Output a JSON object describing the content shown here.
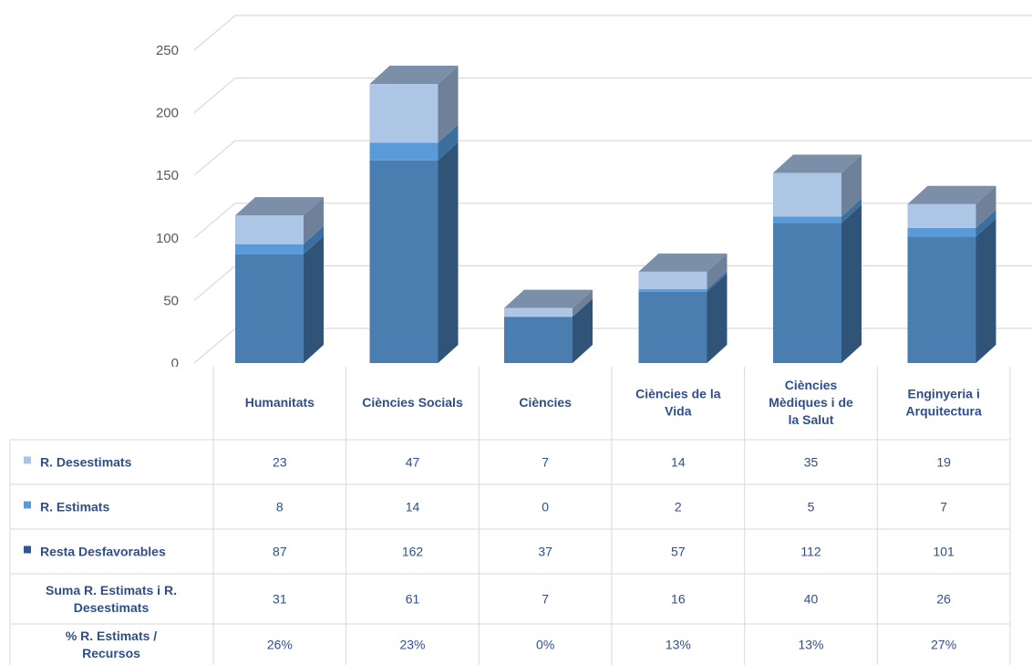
{
  "chart_data": {
    "type": "bar",
    "stacked": true,
    "style": "3d-column",
    "categories": [
      [
        "Humanitats"
      ],
      [
        "Ciències Socials"
      ],
      [
        "Ciències"
      ],
      [
        "Ciències de la",
        "Vida"
      ],
      [
        "Ciències",
        "Mèdiques i de",
        "la Salut"
      ],
      [
        "Enginyeria i",
        "Arquitectura"
      ]
    ],
    "ylim": [
      0,
      250
    ],
    "yticks": [
      0,
      50,
      100,
      150,
      200,
      250
    ],
    "grid": true,
    "series": [
      {
        "name": "Resta Desfavorables",
        "values": [
          87,
          162,
          37,
          57,
          112,
          101
        ],
        "color": "#4472C4",
        "front": "#4A7DB0",
        "top": "#6B8BB0",
        "side": "#2F5477",
        "legend": "#2E5597"
      },
      {
        "name": "R. Estimats",
        "values": [
          8,
          14,
          0,
          2,
          5,
          7
        ],
        "color": "#5B9BD5",
        "front": "#5A9AD8",
        "top": "#7FAFDC",
        "side": "#3B6FA0",
        "legend": "#5B9BD5"
      },
      {
        "name": "R. Desestimats",
        "values": [
          23,
          47,
          7,
          14,
          35,
          19
        ],
        "color": "#A9C4E6",
        "front": "#ADC6E6",
        "top": "#7C8FA8",
        "side": "#6F8199",
        "legend": "#A9C4E6"
      }
    ],
    "table": {
      "rows": [
        {
          "label": [
            "R. Desestimats"
          ],
          "legend": "#A9C4E6",
          "values": [
            "23",
            "47",
            "7",
            "14",
            "35",
            "19"
          ]
        },
        {
          "label": [
            "R. Estimats"
          ],
          "legend": "#5B9BD5",
          "values": [
            "8",
            "14",
            "0",
            "2",
            "5",
            "7"
          ]
        },
        {
          "label": [
            "Resta Desfavorables"
          ],
          "legend": "#2E5597",
          "values": [
            "87",
            "162",
            "37",
            "57",
            "112",
            "101"
          ]
        },
        {
          "label": [
            "Suma R. Estimats i R.",
            "Desestimats"
          ],
          "legend": null,
          "values": [
            "31",
            "61",
            "7",
            "16",
            "40",
            "26"
          ]
        },
        {
          "label": [
            "% R. Estimats /",
            "Recursos"
          ],
          "legend": null,
          "values": [
            "26%",
            "23%",
            "0%",
            "13%",
            "13%",
            "27%"
          ]
        }
      ]
    }
  }
}
